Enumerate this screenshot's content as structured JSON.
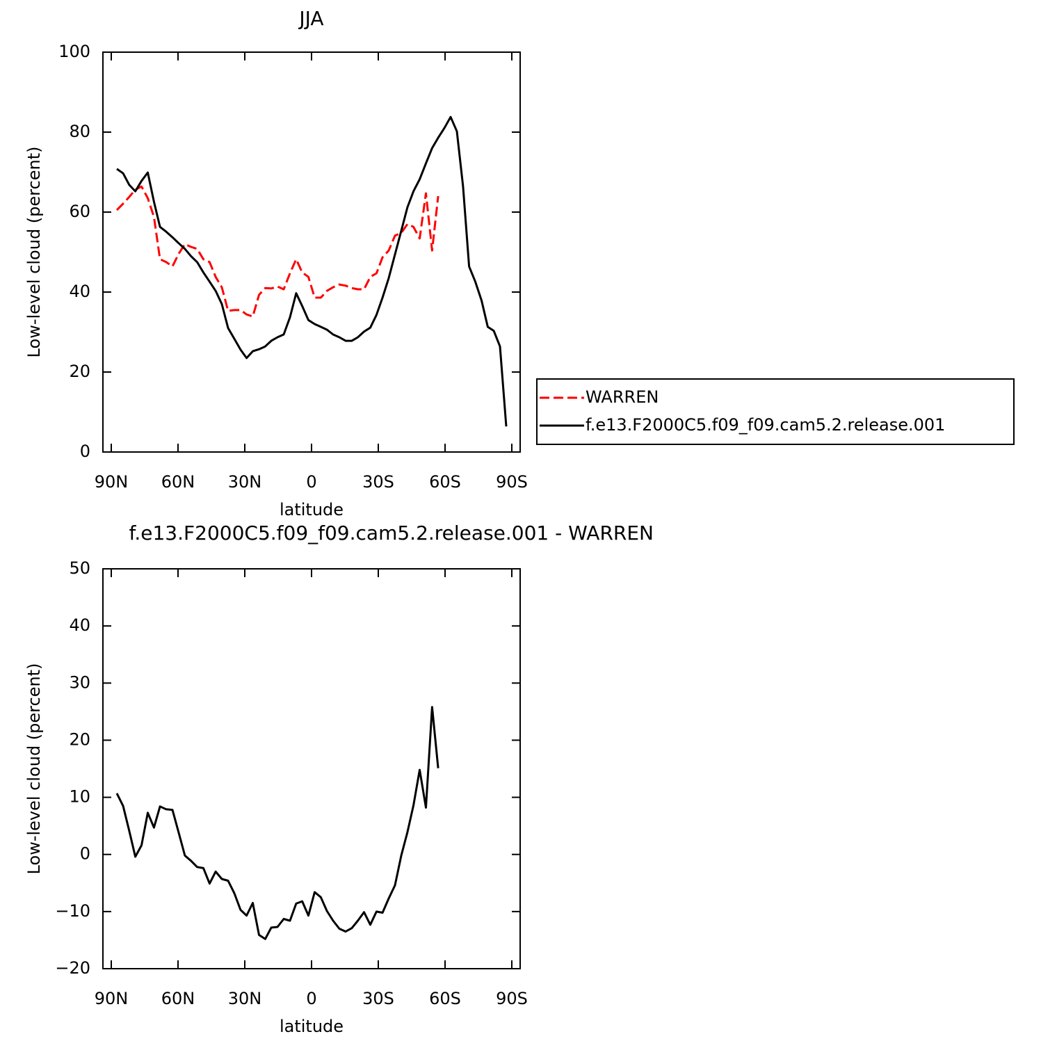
{
  "chart_data": [
    {
      "type": "line",
      "title": "JJA",
      "xlabel": "latitude",
      "ylabel": "Low-level cloud (percent)",
      "x": [
        87.5,
        84.7,
        81.9,
        79.2,
        76.4,
        73.6,
        70.8,
        68.1,
        65.3,
        62.5,
        59.7,
        56.9,
        54.2,
        51.4,
        48.6,
        45.8,
        43.1,
        40.3,
        37.5,
        34.7,
        31.9,
        29.2,
        26.4,
        23.6,
        20.8,
        18.1,
        15.3,
        12.5,
        9.7,
        6.9,
        4.2,
        1.4,
        -1.4,
        -4.2,
        -6.9,
        -9.7,
        -12.5,
        -15.3,
        -18.1,
        -20.8,
        -23.6,
        -26.4,
        -29.2,
        -31.9,
        -34.7,
        -37.5,
        -40.3,
        -43.1,
        -45.8,
        -48.6,
        -51.4,
        -54.2,
        -56.9,
        -59.7,
        -62.5,
        -65.3,
        -68.1,
        -70.8,
        -73.6,
        -76.4,
        -79.2,
        -81.9,
        -84.7,
        -87.5
      ],
      "series": [
        {
          "name": "WARREN",
          "color": "#ff0000",
          "dashed": true,
          "values": [
            60.5,
            62.1,
            63.8,
            65.6,
            66.4,
            63.5,
            58.8,
            48.2,
            47.5,
            46.4,
            49.6,
            52.0,
            51.3,
            50.8,
            48.2,
            47.5,
            43.8,
            41.2,
            35.3,
            35.5,
            35.5,
            34.4,
            33.9,
            39.3,
            41.0,
            40.9,
            41.4,
            40.7,
            44.7,
            48.2,
            44.9,
            43.8,
            38.6,
            38.6,
            40.3,
            41.2,
            41.9,
            41.6,
            41.0,
            40.7,
            40.7,
            43.8,
            44.7,
            48.7,
            50.4,
            54.1,
            54.8,
            57.0,
            56.3,
            53.4,
            64.7,
            50.4,
            64.0,
            null,
            null,
            null,
            null,
            null,
            null,
            null,
            null,
            null,
            null,
            null
          ]
        },
        {
          "name": "f.e13.F2000C5.f09_f09.cam5.2.release.001",
          "color": "#000000",
          "dashed": false,
          "values": [
            70.8,
            69.7,
            66.8,
            65.2,
            67.8,
            69.9,
            62.6,
            56.3,
            55.1,
            53.7,
            52.2,
            50.8,
            49.0,
            47.5,
            44.9,
            42.6,
            40.3,
            37.0,
            31.0,
            28.3,
            25.6,
            23.5,
            25.2,
            25.7,
            26.4,
            27.8,
            28.7,
            29.4,
            33.7,
            39.7,
            36.5,
            33.0,
            32.0,
            31.3,
            30.6,
            29.4,
            28.7,
            27.8,
            27.8,
            28.7,
            30.1,
            31.1,
            34.3,
            38.6,
            43.5,
            49.4,
            55.3,
            61.2,
            65.2,
            68.2,
            72.2,
            76.0,
            78.6,
            81.0,
            83.8,
            80.2,
            66.4,
            46.4,
            42.6,
            37.9,
            31.3,
            30.3,
            26.4,
            6.4
          ]
        }
      ],
      "xlim": [
        93.75,
        -93.75
      ],
      "xticks": [
        {
          "value": 90,
          "label": "90N"
        },
        {
          "value": 60,
          "label": "60N"
        },
        {
          "value": 30,
          "label": "30N"
        },
        0,
        {
          "value": -30,
          "label": "30S"
        },
        {
          "value": -60,
          "label": "60S"
        },
        {
          "value": -90,
          "label": "90S"
        }
      ],
      "ylim": [
        0,
        100
      ],
      "yticks": [
        0,
        20,
        40,
        60,
        80,
        100
      ],
      "legend": "right"
    },
    {
      "type": "line",
      "title": "f.e13.F2000C5.f09_f09.cam5.2.release.001 - WARREN",
      "xlabel": "latitude",
      "ylabel": "Low-level cloud (percent)",
      "x": [
        87.5,
        84.7,
        81.9,
        79.2,
        76.4,
        73.6,
        70.8,
        68.1,
        65.3,
        62.5,
        59.7,
        56.9,
        54.2,
        51.4,
        48.6,
        45.8,
        43.1,
        40.3,
        37.5,
        34.7,
        31.9,
        29.2,
        26.4,
        23.6,
        20.8,
        18.1,
        15.3,
        12.5,
        9.7,
        6.9,
        4.2,
        1.4,
        -1.4,
        -4.2,
        -6.9,
        -9.7,
        -12.5,
        -15.3,
        -18.1,
        -20.8,
        -23.6,
        -26.4,
        -29.2,
        -31.9,
        -34.7,
        -37.5,
        -40.3,
        -43.1,
        -45.8,
        -48.6,
        -51.4,
        -54.2,
        -56.9,
        -59.7,
        -62.5,
        -65.3,
        -68.1,
        -70.8,
        -73.6,
        -76.4,
        -79.2,
        -81.9,
        -84.7,
        -87.5
      ],
      "series": [
        {
          "color": "#000000",
          "dashed": false,
          "values": [
            10.7,
            8.5,
            4.1,
            -0.4,
            1.6,
            7.3,
            4.7,
            8.4,
            7.9,
            7.8,
            3.8,
            -0.2,
            -1.1,
            -2.2,
            -2.4,
            -5.1,
            -3.0,
            -4.3,
            -4.6,
            -6.8,
            -9.7,
            -10.7,
            -8.5,
            -14.1,
            -14.8,
            -12.8,
            -12.7,
            -11.3,
            -11.6,
            -8.6,
            -8.2,
            -10.7,
            -6.6,
            -7.5,
            -9.9,
            -11.6,
            -13.0,
            -13.5,
            -12.9,
            -11.6,
            -10.1,
            -12.3,
            -10.0,
            -10.2,
            -7.7,
            -5.4,
            -0.2,
            3.9,
            8.6,
            14.8,
            8.2,
            25.8,
            15.1,
            null,
            null,
            null,
            null,
            null,
            null,
            null,
            null,
            null,
            null,
            null
          ]
        }
      ],
      "xlim": [
        93.75,
        -93.75
      ],
      "xticks": [
        {
          "value": 90,
          "label": "90N"
        },
        {
          "value": 60,
          "label": "60N"
        },
        {
          "value": 30,
          "label": "30N"
        },
        0,
        {
          "value": -30,
          "label": "30S"
        },
        {
          "value": -60,
          "label": "60S"
        },
        {
          "value": -90,
          "label": "90S"
        }
      ],
      "ylim": [
        -20,
        50
      ],
      "yticks": [
        {
          "value": -20,
          "label": "−20"
        },
        {
          "value": -10,
          "label": "−10"
        },
        0,
        10,
        20,
        30,
        40,
        50
      ]
    }
  ]
}
